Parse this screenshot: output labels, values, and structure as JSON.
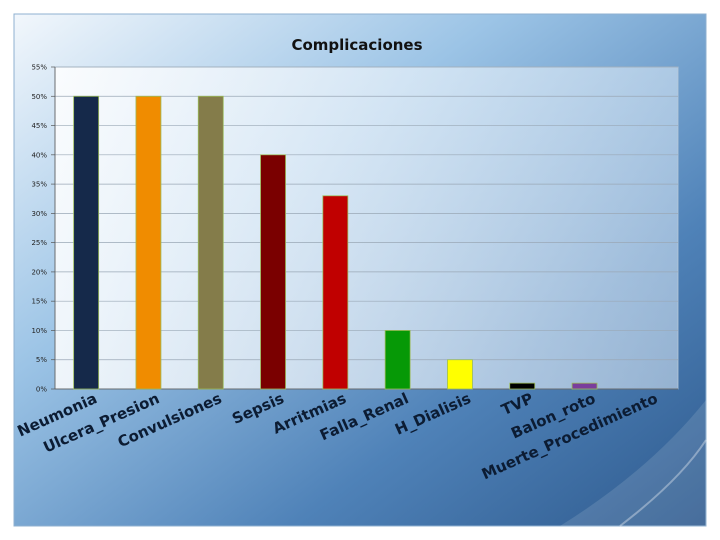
{
  "chart_data": {
    "type": "bar",
    "title": "Complicaciones",
    "categories": [
      "Neumonia",
      "Ulcera_Presion",
      "Convulsiones",
      "Sepsis",
      "Arritmias",
      "Falla_Renal",
      "H_Dialisis",
      "TVP",
      "Balon_roto",
      "Muerte_Procedimiento"
    ],
    "values": [
      50,
      50,
      50,
      40,
      33,
      10,
      5,
      1,
      1,
      0
    ],
    "bar_colors": [
      "#15294a",
      "#f08c00",
      "#847c4a",
      "#7a0000",
      "#c00000",
      "#069906",
      "#ffff00",
      "#000000",
      "#7a3d9c",
      "#7a3d9c"
    ],
    "y_ticks": [
      "0%",
      "5%",
      "10%",
      "15%",
      "20%",
      "25%",
      "30%",
      "35%",
      "40%",
      "45%",
      "50%",
      "55%"
    ],
    "ylim": [
      0,
      55
    ],
    "grid": true,
    "legend": "none"
  }
}
